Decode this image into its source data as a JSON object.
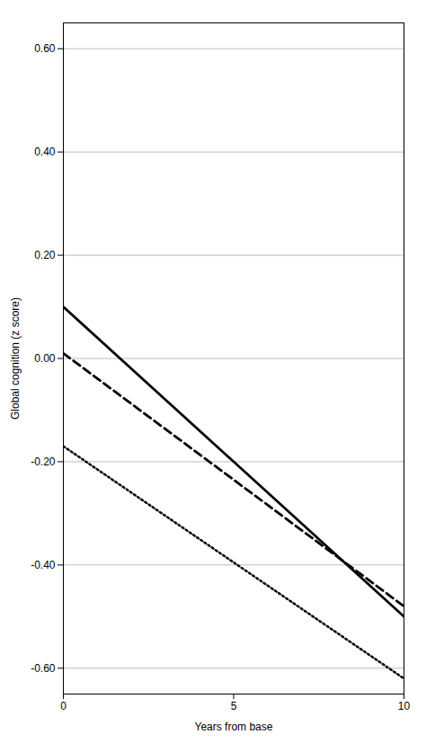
{
  "chart_data": {
    "type": "line",
    "xlabel": "Years from base",
    "ylabel": "Global cognition (z score)",
    "x": [
      0,
      10
    ],
    "series": [
      {
        "color": "#000000",
        "line_style": "solid",
        "values": [
          0.1,
          -0.5
        ]
      },
      {
        "color": "#000000",
        "line_style": "dashed",
        "values": [
          0.01,
          -0.48
        ]
      },
      {
        "color": "#000000",
        "line_style": "dotted",
        "values": [
          -0.17,
          -0.62
        ]
      }
    ],
    "xlim": [
      0,
      10
    ],
    "ylim": [
      -0.65,
      0.65
    ],
    "xticks": [
      0,
      5,
      10
    ],
    "yticks": [
      {
        "value": -0.6,
        "label": "-0.60"
      },
      {
        "value": -0.4,
        "label": "-0.40"
      },
      {
        "value": -0.2,
        "label": "-0.20"
      },
      {
        "value": 0.0,
        "label": "0.00"
      },
      {
        "value": 0.2,
        "label": "0.20"
      },
      {
        "value": 0.4,
        "label": "0.40"
      },
      {
        "value": 0.6,
        "label": "0.60"
      }
    ],
    "grid": true
  }
}
